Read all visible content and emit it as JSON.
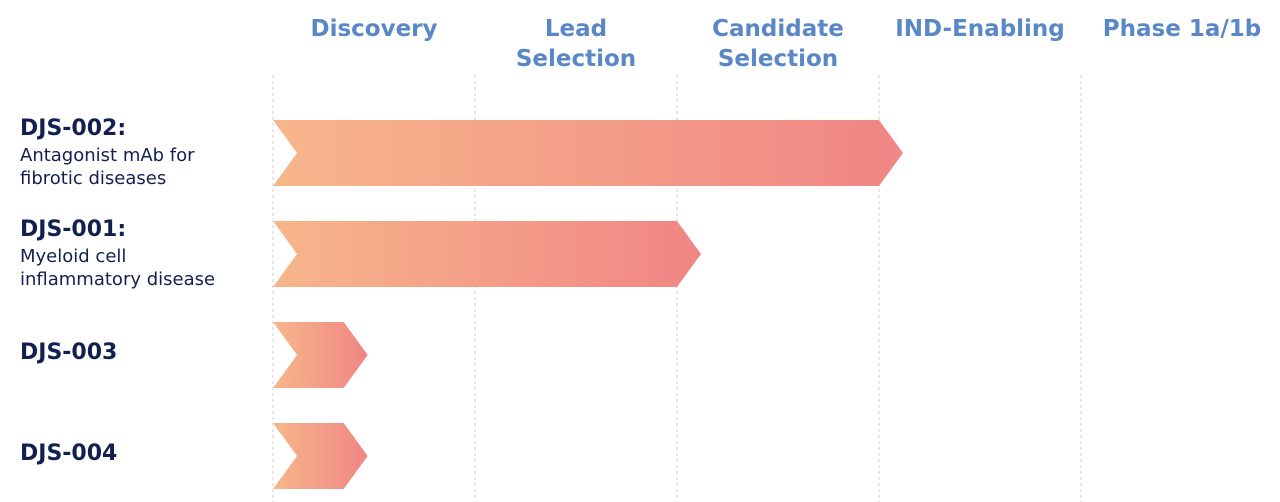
{
  "chart_data": {
    "type": "pipeline",
    "stages": [
      "Discovery",
      "Lead\nSelection",
      "Candidate\nSelection",
      "IND-Enabling",
      "Phase 1a/1b"
    ],
    "programs": [
      {
        "name": "DJS-002:",
        "description": "Antagonist mAb for\nfibrotic diseases",
        "progress": 3
      },
      {
        "name": "DJS-001:",
        "description": "Myeloid cell\ninflammatory disease",
        "progress": 2
      },
      {
        "name": "DJS-003",
        "progress": 0.35
      },
      {
        "name": "DJS-004",
        "progress": 0.35
      }
    ],
    "colors": [
      "#f7b68a",
      "#f08585"
    ]
  }
}
